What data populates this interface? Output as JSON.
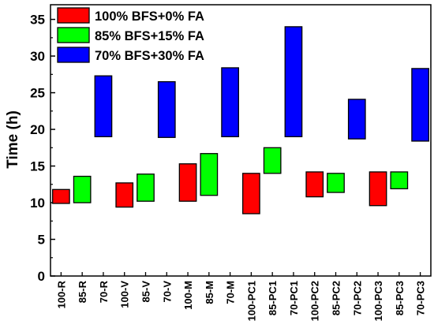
{
  "chart_data": {
    "type": "floating-bar",
    "ylabel": "Time (h)",
    "ylim": [
      0,
      37
    ],
    "yticks": [
      0,
      5,
      10,
      15,
      20,
      25,
      30,
      35
    ],
    "categories": [
      "100-R",
      "85-R",
      "70-R",
      "100-V",
      "85-V",
      "70-V",
      "100-M",
      "85-M",
      "70-M",
      "100-PC1",
      "85-PC1",
      "70-PC1",
      "100-PC2",
      "85-PC2",
      "70-PC2",
      "100-PC3",
      "85-PC3",
      "70-PC3"
    ],
    "series": [
      {
        "name": "100% BFS+0% FA",
        "color": "#ff0000",
        "ranges": [
          [
            9.9,
            11.8
          ],
          null,
          null,
          [
            9.4,
            12.7
          ],
          null,
          null,
          [
            10.2,
            15.3
          ],
          null,
          null,
          [
            8.5,
            14.0
          ],
          null,
          null,
          [
            10.8,
            14.2
          ],
          null,
          null,
          [
            9.6,
            14.2
          ],
          null,
          null
        ]
      },
      {
        "name": "85% BFS+15% FA",
        "color": "#00ff00",
        "ranges": [
          null,
          [
            10.0,
            13.6
          ],
          null,
          null,
          [
            10.2,
            13.9
          ],
          null,
          null,
          [
            11.0,
            16.7
          ],
          null,
          null,
          [
            14.0,
            17.5
          ],
          null,
          null,
          [
            11.4,
            14.0
          ],
          null,
          null,
          [
            11.9,
            14.2
          ],
          null
        ]
      },
      {
        "name": "70% BFS+30% FA",
        "color": "#0000ff",
        "ranges": [
          null,
          null,
          [
            19.0,
            27.3
          ],
          null,
          null,
          [
            18.9,
            26.5
          ],
          null,
          null,
          [
            19.0,
            28.4
          ],
          null,
          null,
          [
            19.0,
            34.0
          ],
          null,
          null,
          [
            18.7,
            24.1
          ],
          null,
          null,
          [
            18.4,
            28.3
          ]
        ]
      }
    ],
    "legend_position": "top-left"
  }
}
